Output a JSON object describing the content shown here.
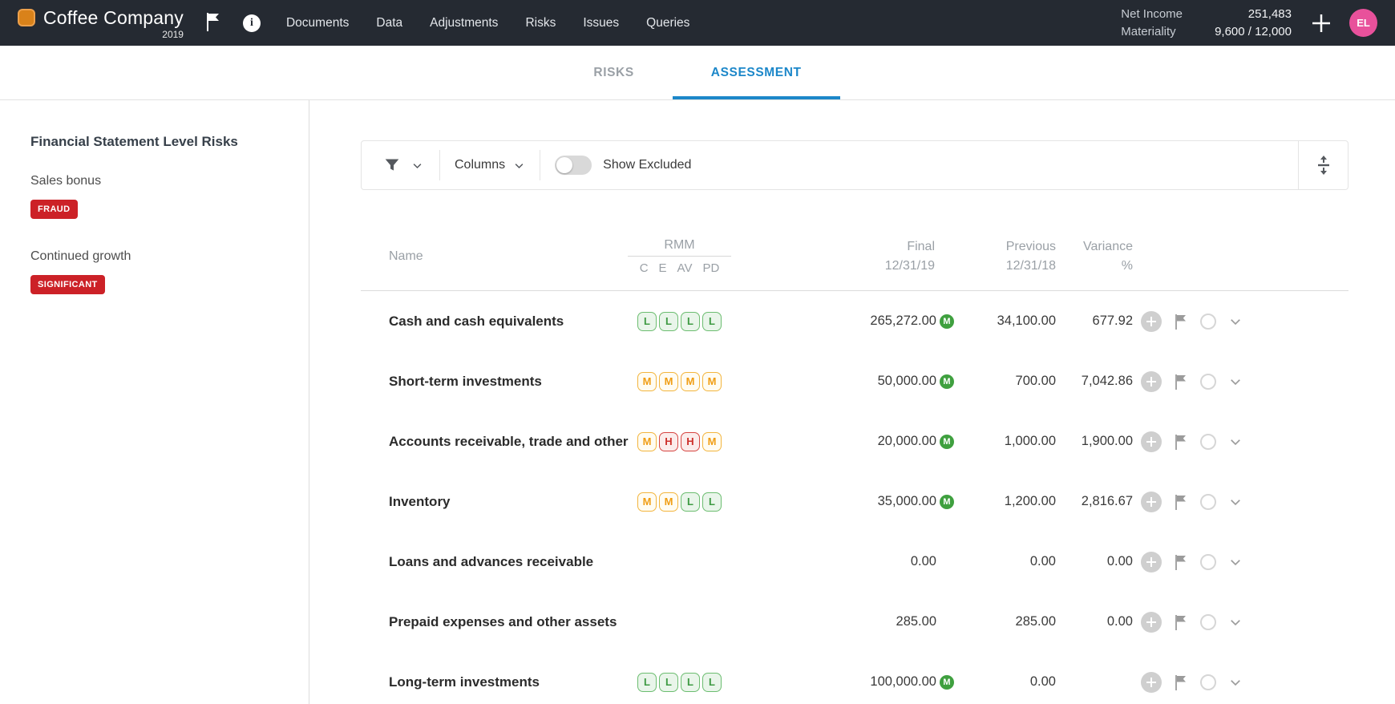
{
  "topbar": {
    "company": "Coffee Company",
    "year": "2019",
    "nav": [
      "Documents",
      "Data",
      "Adjustments",
      "Risks",
      "Issues",
      "Queries"
    ],
    "metrics": [
      {
        "label": "Net Income",
        "value": "251,483"
      },
      {
        "label": "Materiality",
        "value": "9,600 / 12,000"
      }
    ],
    "avatar_initials": "EL"
  },
  "tabs": {
    "risks": "RISKS",
    "assessment": "ASSESSMENT",
    "active": "ASSESSMENT"
  },
  "sidebar": {
    "title": "Financial Statement Level Risks",
    "risks": [
      {
        "name": "Sales bonus",
        "badge": "FRAUD"
      },
      {
        "name": "Continued growth",
        "badge": "SIGNIFICANT"
      }
    ]
  },
  "toolbar": {
    "columns": "Columns",
    "show_excluded": "Show Excluded",
    "show_excluded_on": false
  },
  "table": {
    "headers": {
      "name": "Name",
      "rmm": "RMM",
      "rmm_sub": [
        "C",
        "E",
        "AV",
        "PD"
      ],
      "final_line1": "Final",
      "final_line2": "12/31/19",
      "previous_line1": "Previous",
      "previous_line2": "12/31/18",
      "variance_line1": "Variance",
      "variance_line2": "%"
    },
    "rows": [
      {
        "name": "Cash and cash equivalents",
        "rmm": [
          "L",
          "L",
          "L",
          "L"
        ],
        "final": "265,272.00",
        "final_materiality": true,
        "previous": "34,100.00",
        "variance": "677.92"
      },
      {
        "name": "Short-term investments",
        "rmm": [
          "M",
          "M",
          "M",
          "M"
        ],
        "final": "50,000.00",
        "final_materiality": true,
        "previous": "700.00",
        "variance": "7,042.86"
      },
      {
        "name": "Accounts receivable, trade and other",
        "rmm": [
          "M",
          "H",
          "H",
          "M"
        ],
        "final": "20,000.00",
        "final_materiality": true,
        "previous": "1,000.00",
        "variance": "1,900.00"
      },
      {
        "name": "Inventory",
        "rmm": [
          "M",
          "M",
          "L",
          "L"
        ],
        "final": "35,000.00",
        "final_materiality": true,
        "previous": "1,200.00",
        "variance": "2,816.67"
      },
      {
        "name": "Loans and advances receivable",
        "rmm": [],
        "final": "0.00",
        "final_materiality": false,
        "previous": "0.00",
        "variance": "0.00"
      },
      {
        "name": "Prepaid expenses and other assets",
        "rmm": [],
        "final": "285.00",
        "final_materiality": false,
        "previous": "285.00",
        "variance": "0.00"
      },
      {
        "name": "Long-term investments",
        "rmm": [
          "L",
          "L",
          "L",
          "L"
        ],
        "final": "100,000.00",
        "final_materiality": true,
        "previous": "0.00",
        "variance": ""
      }
    ]
  },
  "colors": {
    "topbar_bg": "#252a32",
    "accent_blue": "#1c87c9",
    "badge_red": "#cc2127",
    "rmm_low_green": "#3e9a43",
    "rmm_medium_amber": "#f09d13",
    "rmm_high_red": "#cd302b",
    "materiality_green": "#3fa03f",
    "logo_orange": "#d9821a",
    "avatar_pink": "#e8519b"
  }
}
